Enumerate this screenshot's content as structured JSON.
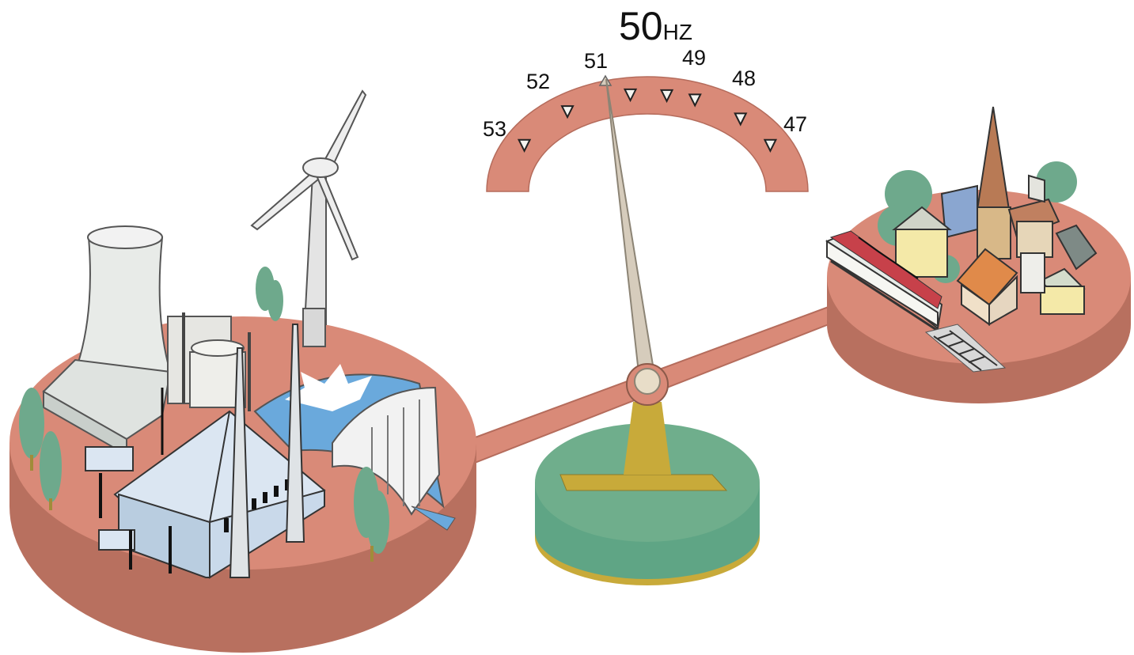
{
  "gauge": {
    "value_label": "50",
    "unit_label": "HZ",
    "ticks": [
      "53",
      "52",
      "51",
      "49",
      "48",
      "47"
    ],
    "needle_value": 51
  },
  "colors": {
    "platform": "#d98a78",
    "platform_side": "#b8705f",
    "base": "#6fae8c",
    "base_rim": "#c8aa3a",
    "needle": "#d6ccbc",
    "building": "#c9d9ea",
    "tree": "#6ea98c"
  }
}
